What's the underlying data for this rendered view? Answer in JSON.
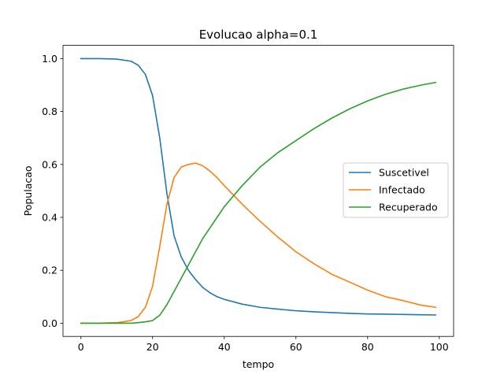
{
  "chart_data": {
    "type": "line",
    "title": "Evolucao alpha=0.1",
    "xlabel": "tempo",
    "ylabel": "Populacao",
    "xlim": [
      -5,
      104
    ],
    "ylim": [
      -0.05,
      1.05
    ],
    "xticks": [
      0,
      20,
      40,
      60,
      80,
      100
    ],
    "xtick_labels": [
      "0",
      "20",
      "40",
      "60",
      "80",
      "100"
    ],
    "yticks": [
      0.0,
      0.2,
      0.4,
      0.6,
      0.8,
      1.0
    ],
    "ytick_labels": [
      "0.0",
      "0.2",
      "0.4",
      "0.6",
      "0.8",
      "1.0"
    ],
    "grid": false,
    "legend_position": "center-right",
    "x": [
      0,
      5,
      10,
      14,
      16,
      18,
      20,
      22,
      24,
      26,
      28,
      30,
      32,
      34,
      36,
      38,
      40,
      45,
      50,
      55,
      60,
      65,
      70,
      75,
      80,
      85,
      90,
      95,
      99
    ],
    "series": [
      {
        "name": "Suscetivel",
        "color": "#1f77b4",
        "values": [
          1.0,
          1.0,
          0.998,
          0.99,
          0.975,
          0.94,
          0.86,
          0.7,
          0.49,
          0.33,
          0.25,
          0.2,
          0.165,
          0.135,
          0.115,
          0.1,
          0.09,
          0.072,
          0.06,
          0.053,
          0.047,
          0.043,
          0.04,
          0.037,
          0.035,
          0.034,
          0.033,
          0.032,
          0.031
        ]
      },
      {
        "name": "Infectado",
        "color": "#ff7f0e",
        "values": [
          0.0,
          0.0,
          0.002,
          0.01,
          0.025,
          0.06,
          0.14,
          0.29,
          0.45,
          0.55,
          0.59,
          0.6,
          0.605,
          0.595,
          0.575,
          0.55,
          0.52,
          0.45,
          0.385,
          0.325,
          0.27,
          0.225,
          0.185,
          0.155,
          0.125,
          0.1,
          0.085,
          0.068,
          0.06
        ]
      },
      {
        "name": "Recuperado",
        "color": "#2ca02c",
        "values": [
          0.0,
          0.0,
          0.0,
          0.0,
          0.002,
          0.005,
          0.01,
          0.03,
          0.07,
          0.12,
          0.17,
          0.22,
          0.27,
          0.32,
          0.36,
          0.4,
          0.44,
          0.52,
          0.59,
          0.645,
          0.69,
          0.735,
          0.775,
          0.81,
          0.84,
          0.865,
          0.885,
          0.9,
          0.91
        ]
      }
    ]
  }
}
